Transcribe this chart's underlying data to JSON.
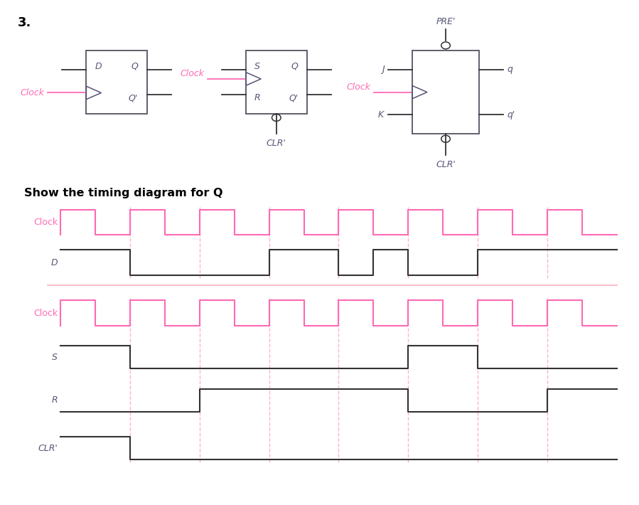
{
  "title_number": "3.",
  "clock_color": "#FF69B4",
  "signal_color": "#333333",
  "dashed_color": "#FFB6C1",
  "background_color": "#FFFFFF",
  "ff_color": "#555577",
  "subtitle": "Show the timing diagram for Q",
  "total_time": 16.0,
  "clock_times": [
    0,
    0,
    1,
    1,
    2,
    2,
    3,
    3,
    4,
    4,
    5,
    5,
    6,
    6,
    7,
    7,
    8,
    8,
    9,
    9,
    10,
    10,
    11,
    11,
    12,
    12,
    13,
    13,
    14,
    14,
    15,
    15,
    16
  ],
  "clock_vals": [
    0,
    1,
    1,
    0,
    0,
    1,
    1,
    0,
    0,
    1,
    1,
    0,
    0,
    1,
    1,
    0,
    0,
    1,
    1,
    0,
    0,
    1,
    1,
    0,
    0,
    1,
    1,
    0,
    0,
    1,
    1,
    0,
    0
  ],
  "D_times": [
    0,
    2,
    2,
    6,
    6,
    8,
    8,
    9,
    9,
    10,
    10,
    12,
    12,
    16
  ],
  "D_vals": [
    1,
    1,
    0,
    0,
    1,
    1,
    0,
    0,
    1,
    1,
    0,
    0,
    1,
    1
  ],
  "S_times": [
    0,
    2,
    2,
    10,
    10,
    12,
    12,
    16
  ],
  "S_vals": [
    1,
    1,
    0,
    0,
    1,
    1,
    0,
    0
  ],
  "R_times": [
    0,
    4,
    4,
    10,
    10,
    14,
    14,
    16
  ],
  "R_vals": [
    0,
    0,
    1,
    1,
    0,
    0,
    1,
    1
  ],
  "CLR_times": [
    0,
    2,
    2,
    16
  ],
  "CLR_vals": [
    1,
    1,
    0,
    0
  ],
  "dashed_x": [
    2,
    4,
    6,
    8,
    10,
    12,
    14
  ]
}
